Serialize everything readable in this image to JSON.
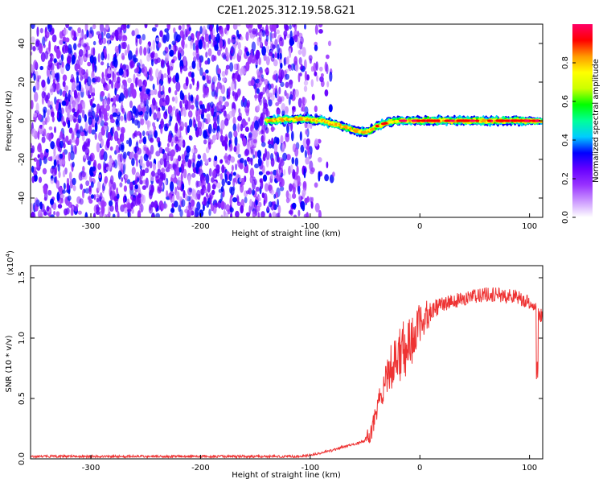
{
  "chart_data": [
    {
      "type": "heatmap",
      "title": "C2E1.2025.312.19.58.G21",
      "xlabel": "Height of straight line (km)",
      "ylabel": "Frequency (Hz)",
      "xlim": [
        -355,
        112
      ],
      "ylim": [
        -50,
        50
      ],
      "xticks": [
        -300,
        -200,
        -100,
        0,
        100
      ],
      "xtick_labels": [
        "-300",
        "-200",
        "-100",
        "0",
        "100"
      ],
      "yticks": [
        -40,
        -20,
        0,
        20,
        40
      ],
      "ytick_labels": [
        "-40",
        "-20",
        "0",
        "20",
        "40"
      ],
      "noise_region_x": [
        -355,
        -95
      ],
      "signal_track": {
        "x": [
          -140,
          -110,
          -90,
          -70,
          -60,
          -50,
          -45,
          -40,
          -30,
          -20,
          0,
          20,
          50,
          80,
          112
        ],
        "freq": [
          0,
          1,
          0,
          -3,
          -5,
          -6,
          -5,
          -3,
          -1,
          0,
          0,
          0,
          0,
          0,
          0
        ]
      },
      "colorbar": {
        "label": "Normalized spectral amplitude",
        "range": [
          0,
          1
        ],
        "ticks": [
          0.0,
          0.2,
          0.4,
          0.6,
          0.8
        ],
        "tick_labels": [
          "0.0",
          "0.2",
          "0.4",
          "0.6",
          "0.8"
        ],
        "colors": [
          "#ffffff",
          "#cc99ff",
          "#9933ff",
          "#6600ff",
          "#0000ff",
          "#00ccff",
          "#00ff99",
          "#00ff00",
          "#ccff00",
          "#ffff00",
          "#ff9900",
          "#ff0000",
          "#ff0066"
        ]
      }
    },
    {
      "type": "line",
      "xlabel": "Height of straight line (km)",
      "ylabel": "SNR (10 * v/v)",
      "scale_label": "(x10",
      "scale_exp": "4",
      "scale_close": ")",
      "xlim": [
        -355,
        112
      ],
      "ylim": [
        0.0,
        1.6
      ],
      "xticks": [
        -300,
        -200,
        -100,
        0,
        100
      ],
      "xtick_labels": [
        "-300",
        "-200",
        "-100",
        "0",
        "100"
      ],
      "yticks": [
        0.0,
        0.5,
        1.0,
        1.5
      ],
      "ytick_labels": [
        "0.0",
        "0.5",
        "1.0",
        "1.5"
      ],
      "color": "#ee3333",
      "series": [
        {
          "name": "SNR",
          "x": [
            -355,
            -300,
            -250,
            -200,
            -150,
            -110,
            -100,
            -90,
            -80,
            -70,
            -60,
            -50,
            -45,
            -40,
            -35,
            -30,
            -25,
            -20,
            -15,
            -10,
            -5,
            0,
            10,
            20,
            30,
            40,
            50,
            60,
            70,
            80,
            90,
            100,
            105,
            108,
            112
          ],
          "y": [
            0.02,
            0.02,
            0.02,
            0.02,
            0.02,
            0.02,
            0.03,
            0.05,
            0.07,
            0.1,
            0.12,
            0.15,
            0.22,
            0.35,
            0.55,
            0.7,
            0.78,
            0.85,
            0.9,
            0.93,
            1.02,
            1.12,
            1.22,
            1.28,
            1.3,
            1.33,
            1.35,
            1.36,
            1.36,
            1.35,
            1.34,
            1.3,
            1.25,
            1.2,
            1.18
          ]
        }
      ]
    }
  ]
}
